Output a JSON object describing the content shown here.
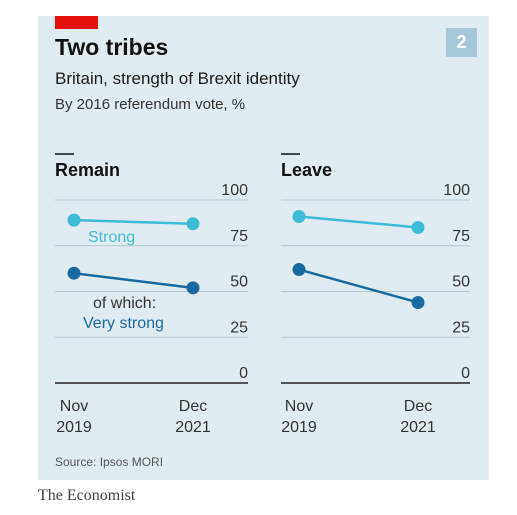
{
  "header": {
    "badge": "2",
    "title": "Two tribes",
    "subtitle": "Britain, strength of Brexit identity",
    "subsubtitle": "By 2016 referendum vote, %"
  },
  "footer": {
    "source": "Source: Ipsos MORI",
    "brand": "The Economist"
  },
  "colors": {
    "panel_bg": "#e1ecf2",
    "strong": "#3ebbd6",
    "very_strong": "#1a6aa2",
    "brand_red": "#e3120b",
    "badge_bg": "#a6c7d8"
  },
  "chart_data": [
    {
      "type": "line",
      "title": "Remain",
      "x": [
        "Nov 2019",
        "Dec 2021"
      ],
      "x_tick_lines": [
        [
          "Nov",
          "2019"
        ],
        [
          "Dec",
          "2021"
        ]
      ],
      "series": [
        {
          "name": "Strong",
          "values": [
            89,
            87
          ]
        },
        {
          "name": "of which: Very strong",
          "values": [
            60,
            52
          ]
        }
      ],
      "series_labels": [
        [
          "Strong"
        ],
        [
          "of which:",
          "Very strong"
        ]
      ],
      "ylim": [
        0,
        100
      ],
      "yticks": [
        0,
        25,
        50,
        75,
        100
      ],
      "grid": true
    },
    {
      "type": "line",
      "title": "Leave",
      "x": [
        "Nov 2019",
        "Dec 2021"
      ],
      "x_tick_lines": [
        [
          "Nov",
          "2019"
        ],
        [
          "Dec",
          "2021"
        ]
      ],
      "series": [
        {
          "name": "Strong",
          "values": [
            91,
            85
          ]
        },
        {
          "name": "Very strong",
          "values": [
            62,
            44
          ]
        }
      ],
      "ylim": [
        0,
        100
      ],
      "yticks": [
        0,
        25,
        50,
        75,
        100
      ],
      "grid": true
    }
  ]
}
